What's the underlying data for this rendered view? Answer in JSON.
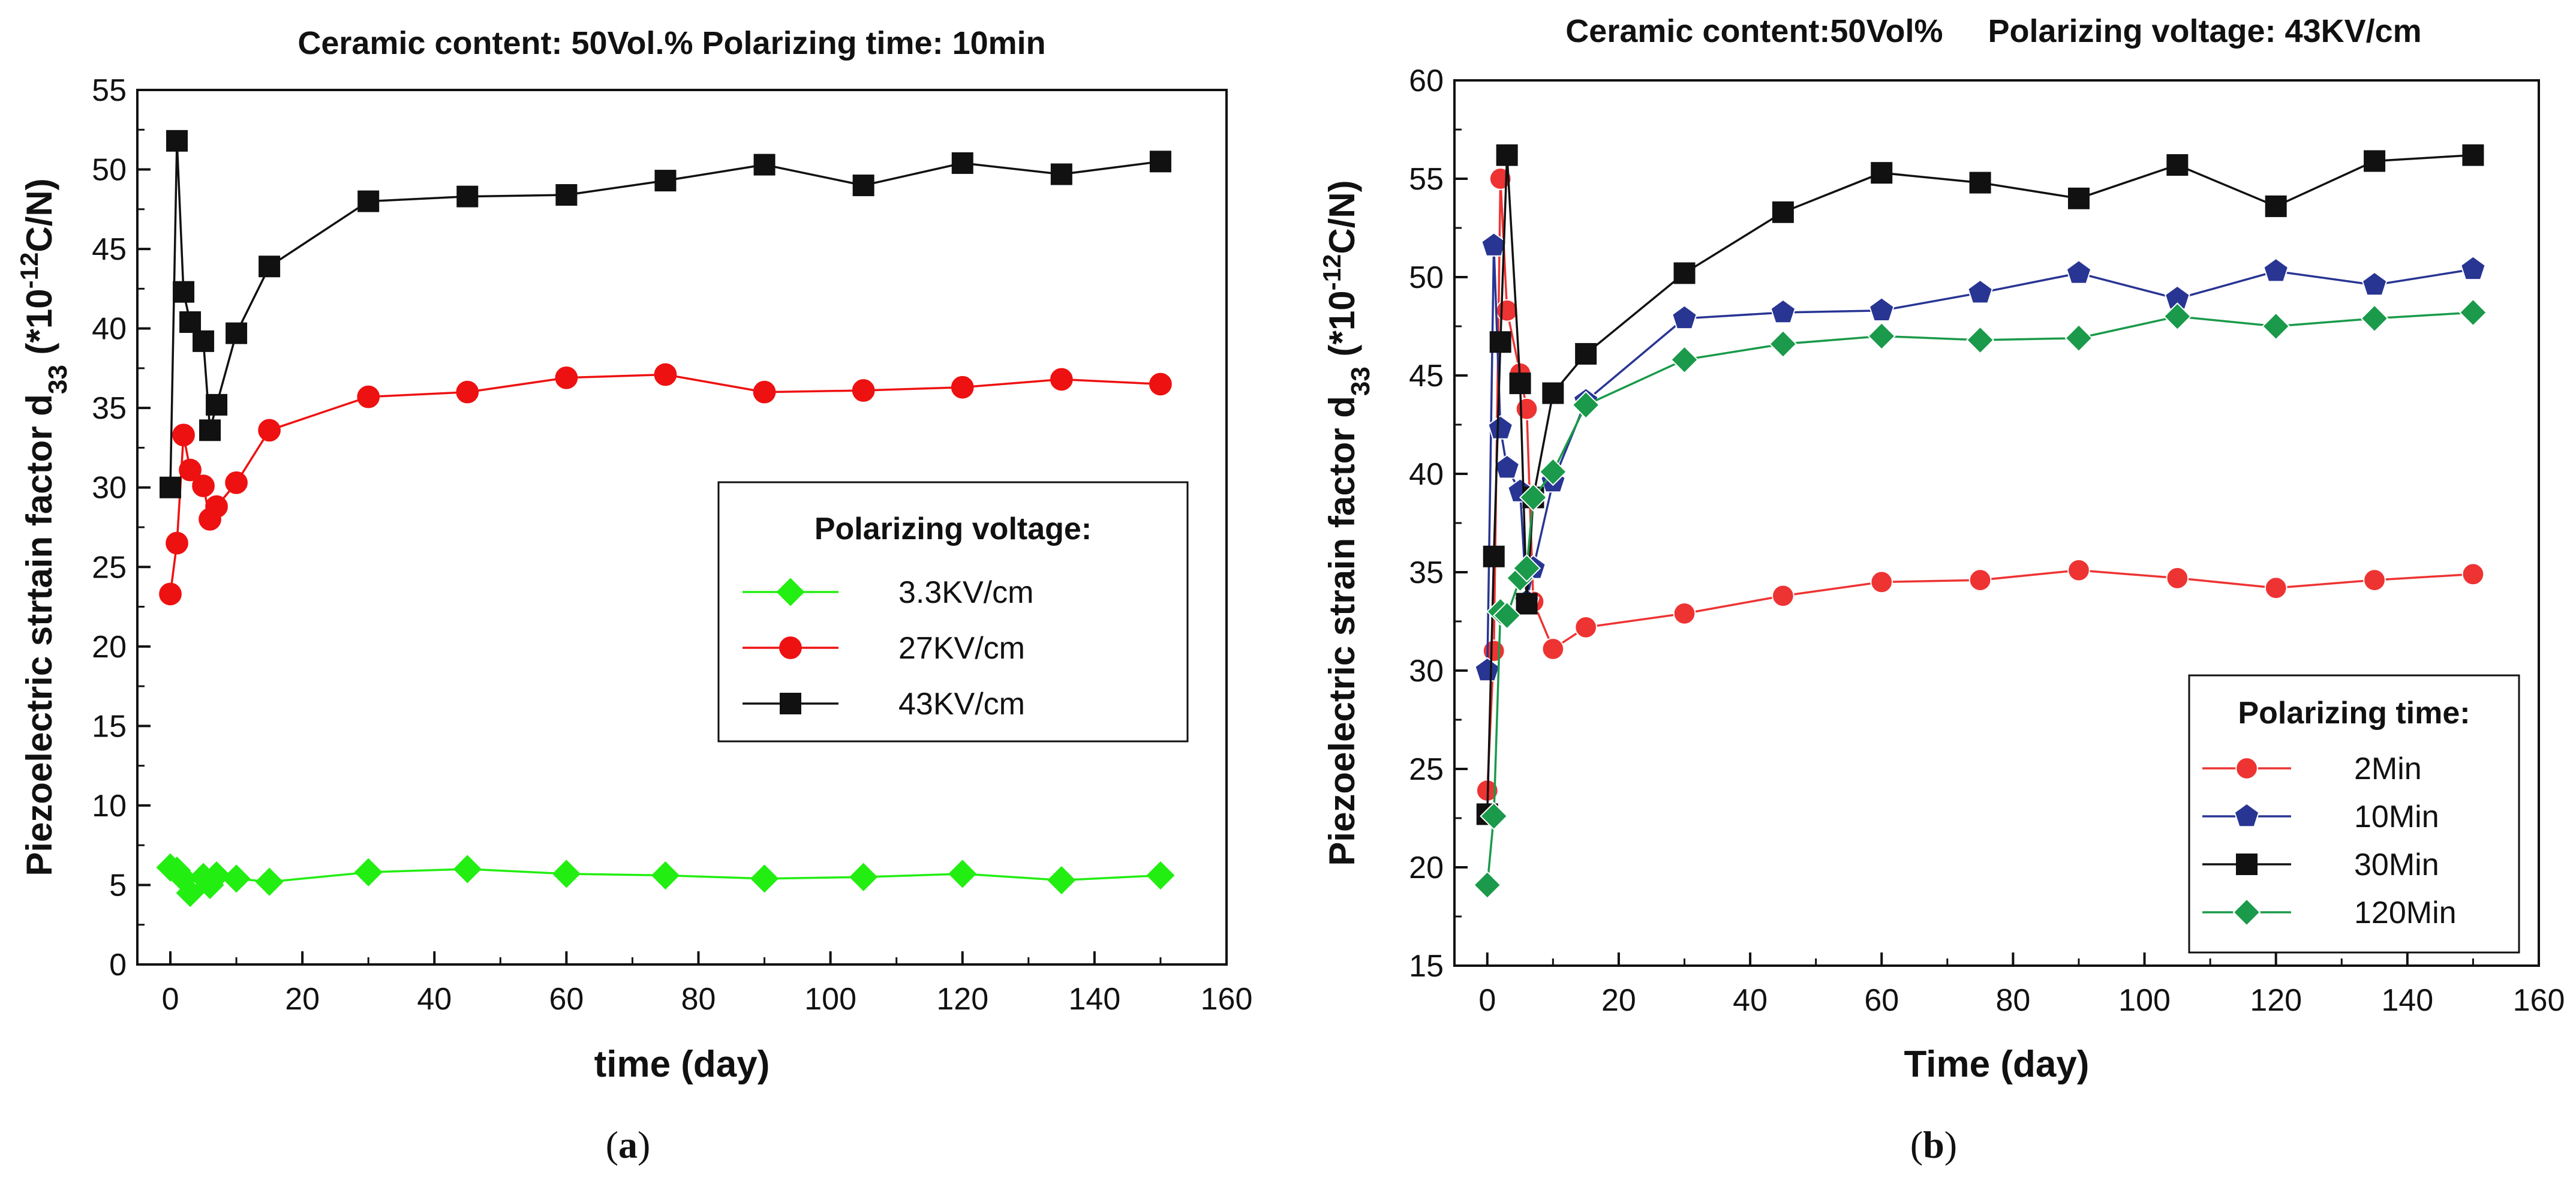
{
  "chart_data": [
    {
      "type": "line",
      "title": "Ceramic content: 50Vol.% Polarizing time: 10min",
      "xlabel": "time (day)",
      "ylabel": "Piezoelectric strtain factor d",
      "ylabel_sub": "33",
      "ylabel_unit_pre": " (*10",
      "ylabel_unit_sup": "-12",
      "ylabel_unit_post": "C/N)",
      "xlim": [
        -5,
        160
      ],
      "ylim": [
        0,
        55
      ],
      "xticks": [
        0,
        20,
        40,
        60,
        80,
        100,
        120,
        140,
        160
      ],
      "yticks": [
        0,
        5,
        10,
        15,
        20,
        25,
        30,
        35,
        40,
        45,
        50,
        55
      ],
      "panel_open": "(",
      "panel_letter": "a",
      "panel_close": ")",
      "legend": {
        "title": "Polarizing voltage:",
        "position": "center-right"
      },
      "series": [
        {
          "name": "3.3KV/cm",
          "color": "#22ee11",
          "marker": "diamond",
          "x": [
            0,
            1,
            2,
            3,
            5,
            6,
            7,
            10,
            15,
            30,
            45,
            60,
            75,
            90,
            105,
            120,
            135,
            150
          ],
          "y": [
            6.1,
            5.9,
            5.4,
            4.5,
            5.5,
            5.0,
            5.6,
            5.4,
            5.2,
            5.8,
            6.0,
            5.7,
            5.6,
            5.4,
            5.5,
            5.7,
            5.3,
            5.6
          ]
        },
        {
          "name": "27KV/cm",
          "color": "#ee1111",
          "marker": "circle",
          "x": [
            0,
            1,
            2,
            3,
            5,
            6,
            7,
            10,
            15,
            30,
            45,
            60,
            75,
            90,
            105,
            120,
            135,
            150
          ],
          "y": [
            23.3,
            26.5,
            33.3,
            31.1,
            30.1,
            28.0,
            28.8,
            30.3,
            33.6,
            35.7,
            36.0,
            36.9,
            37.1,
            36.0,
            36.1,
            36.3,
            36.8,
            36.5
          ]
        },
        {
          "name": "43KV/cm",
          "color": "#111111",
          "marker": "square",
          "x": [
            0,
            1,
            2,
            3,
            5,
            6,
            7,
            10,
            15,
            30,
            45,
            60,
            75,
            90,
            105,
            120,
            135,
            150
          ],
          "y": [
            30.0,
            51.8,
            42.3,
            40.4,
            39.2,
            33.6,
            35.2,
            39.7,
            43.9,
            48.0,
            48.3,
            48.4,
            49.3,
            50.3,
            49.0,
            50.4,
            49.7,
            50.5
          ]
        }
      ]
    },
    {
      "type": "line",
      "title": "Ceramic content:50Vol%     Polarizing voltage: 43KV/cm",
      "xlabel": "Time (day)",
      "ylabel": "Piezoelectric strain factor d",
      "ylabel_sub": "33",
      "ylabel_unit_pre": " (*10",
      "ylabel_unit_sup": "-12",
      "ylabel_unit_post": "C/N)",
      "xlim": [
        -5,
        160
      ],
      "ylim": [
        15,
        60
      ],
      "xticks": [
        0,
        20,
        40,
        60,
        80,
        100,
        120,
        140,
        160
      ],
      "yticks": [
        15,
        20,
        25,
        30,
        35,
        40,
        45,
        50,
        55,
        60
      ],
      "panel_open": "(",
      "panel_letter": "b",
      "panel_close": ")",
      "legend": {
        "title": "Polarizing time:",
        "position": "bottom-right"
      },
      "series": [
        {
          "name": "2Min",
          "color": "#ee3333",
          "marker": "circle",
          "x": [
            0,
            1,
            2,
            3,
            5,
            6,
            7,
            10,
            15,
            30,
            45,
            60,
            75,
            90,
            105,
            120,
            135,
            150
          ],
          "y": [
            23.9,
            31.0,
            55.0,
            48.3,
            45.1,
            43.3,
            33.5,
            31.1,
            32.2,
            32.9,
            33.8,
            34.5,
            34.6,
            35.1,
            34.7,
            34.2,
            34.6,
            34.9
          ]
        },
        {
          "name": "10Min",
          "color": "#283593",
          "marker": "pentagon",
          "x": [
            0,
            1,
            2,
            3,
            5,
            6,
            7,
            10,
            15,
            30,
            45,
            60,
            75,
            90,
            105,
            120,
            135,
            150
          ],
          "y": [
            30.0,
            51.6,
            42.3,
            40.3,
            39.1,
            33.5,
            35.2,
            39.6,
            43.7,
            47.9,
            48.2,
            48.3,
            49.2,
            50.2,
            48.9,
            50.3,
            49.6,
            50.4
          ]
        },
        {
          "name": "30Min",
          "color": "#111111",
          "marker": "square",
          "x": [
            0,
            1,
            2,
            3,
            5,
            6,
            7,
            10,
            15,
            30,
            45,
            60,
            75,
            90,
            105,
            120,
            135,
            150
          ],
          "y": [
            22.7,
            35.8,
            46.7,
            56.2,
            44.6,
            33.4,
            38.8,
            44.1,
            46.1,
            50.2,
            53.3,
            55.3,
            54.8,
            54.0,
            55.7,
            53.6,
            55.9,
            56.2
          ]
        },
        {
          "name": "120Min",
          "color": "#1a9a4a",
          "marker": "diamond",
          "x": [
            0,
            1,
            2,
            3,
            5,
            6,
            7,
            10,
            15,
            30,
            45,
            60,
            75,
            90,
            105,
            120,
            135,
            150
          ],
          "y": [
            19.1,
            22.6,
            33.0,
            32.8,
            34.7,
            35.2,
            38.8,
            40.1,
            43.5,
            45.8,
            46.6,
            47.0,
            46.8,
            46.9,
            48.0,
            47.5,
            47.9,
            48.2
          ]
        }
      ]
    }
  ]
}
